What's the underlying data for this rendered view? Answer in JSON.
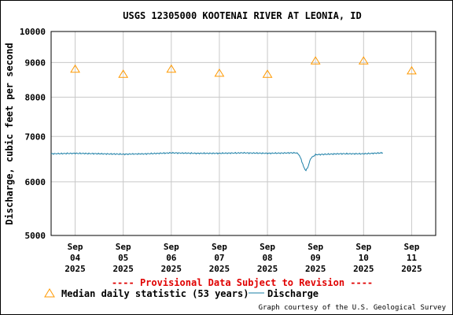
{
  "chart_data": {
    "type": "line",
    "title": "USGS 12305000 KOOTENAI RIVER AT LEONIA, ID",
    "ylabel": "Discharge, cubic feet per second",
    "yscale": "log",
    "ylim": [
      5000,
      10000
    ],
    "yticks": [
      {
        "value": 5000,
        "label": "5000"
      },
      {
        "value": 6000,
        "label": "6000"
      },
      {
        "value": 7000,
        "label": "7000"
      },
      {
        "value": 8000,
        "label": "8000"
      },
      {
        "value": 9000,
        "label": "9000"
      },
      {
        "value": 10000,
        "label": "10000"
      }
    ],
    "xlim": [
      0,
      8
    ],
    "xticks": [
      {
        "pos": 0.5,
        "lines": [
          "Sep",
          "04",
          "2025"
        ]
      },
      {
        "pos": 1.5,
        "lines": [
          "Sep",
          "05",
          "2025"
        ]
      },
      {
        "pos": 2.5,
        "lines": [
          "Sep",
          "06",
          "2025"
        ]
      },
      {
        "pos": 3.5,
        "lines": [
          "Sep",
          "07",
          "2025"
        ]
      },
      {
        "pos": 4.5,
        "lines": [
          "Sep",
          "08",
          "2025"
        ]
      },
      {
        "pos": 5.5,
        "lines": [
          "Sep",
          "09",
          "2025"
        ]
      },
      {
        "pos": 6.5,
        "lines": [
          "Sep",
          "10",
          "2025"
        ]
      },
      {
        "pos": 7.5,
        "lines": [
          "Sep",
          "11",
          "2025"
        ]
      }
    ],
    "grid": true,
    "series": [
      {
        "name": "Median daily statistic (53 years)",
        "kind": "triangle-markers",
        "color": "#ff9900",
        "x": [
          0.5,
          1.5,
          2.5,
          3.5,
          4.5,
          5.5,
          6.5,
          7.5
        ],
        "values": [
          8800,
          8650,
          8800,
          8680,
          8650,
          9050,
          9050,
          8750
        ]
      },
      {
        "name": "Discharge",
        "kind": "line",
        "color": "#1a7ea6",
        "x": [
          0,
          0.5,
          1.0,
          1.5,
          2.0,
          2.5,
          3.0,
          3.5,
          4.0,
          4.5,
          5.0,
          5.1,
          5.15,
          5.2,
          5.25,
          5.3,
          5.35,
          5.4,
          5.5,
          6.0,
          6.5,
          6.9
        ],
        "values": [
          6600,
          6610,
          6600,
          6590,
          6600,
          6620,
          6610,
          6610,
          6620,
          6610,
          6620,
          6620,
          6590,
          6480,
          6320,
          6230,
          6330,
          6500,
          6580,
          6600,
          6600,
          6620
        ]
      }
    ],
    "legend_position": "bottom"
  },
  "provisional_note": "---- Provisional Data Subject to Revision ----",
  "legend": {
    "median_label": "Median daily statistic (53 years)",
    "discharge_label": "Discharge"
  },
  "credit": "Graph courtesy of the U.S. Geological Survey",
  "colors": {
    "provisional": "#e00000",
    "median_marker": "#ff9900",
    "discharge_line": "#1a7ea6",
    "grid": "#c8c8c8"
  }
}
